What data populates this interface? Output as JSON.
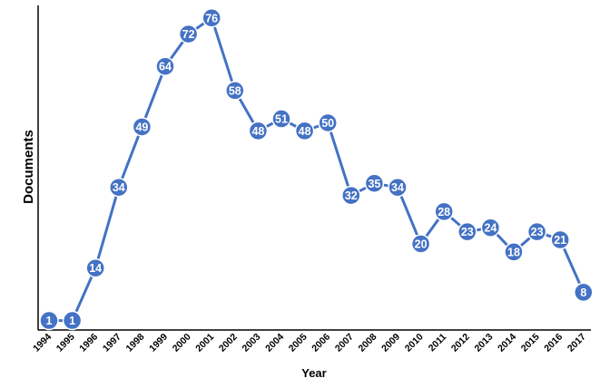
{
  "chart_data": {
    "type": "line",
    "title": "",
    "xlabel": "Year",
    "ylabel": "Documents",
    "x": [
      "1994",
      "1995",
      "1996",
      "1997",
      "1998",
      "1999",
      "2000",
      "2001",
      "2002",
      "2003",
      "2004",
      "2005",
      "2006",
      "2007",
      "2008",
      "2009",
      "2010",
      "2011",
      "2012",
      "2013",
      "2014",
      "2015",
      "2016",
      "2017"
    ],
    "series": [
      {
        "values": [
          1,
          1,
          14,
          34,
          49,
          64,
          72,
          76,
          58,
          48,
          51,
          48,
          50,
          32,
          35,
          34,
          20,
          28,
          23,
          24,
          18,
          23,
          21,
          8
        ]
      }
    ],
    "ylim": [
      0,
      80
    ],
    "grid": false,
    "data_labels": true,
    "colors": {
      "line": "#4472C4",
      "marker": "#4472C4",
      "label_text": "#ffffff",
      "axis": "#000000"
    }
  }
}
